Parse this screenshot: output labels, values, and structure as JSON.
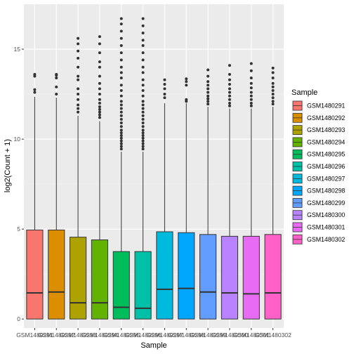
{
  "chart_data": {
    "type": "boxplot",
    "xlabel": "Sample",
    "ylabel": "log2(Count + 1)",
    "ylim": [
      -0.5,
      17.5
    ],
    "yticks": [
      0,
      5,
      10,
      15
    ],
    "grid": true,
    "legend": {
      "title": "Sample",
      "placement": "right"
    },
    "series": [
      {
        "name": "GSM1480291",
        "color": "#F8766D",
        "q1": 0,
        "median": 1.45,
        "q3": 4.95,
        "whisker_low": 0,
        "whisker_high": 12.35,
        "outliers": [
          12.6,
          12.75,
          13.5,
          13.6
        ]
      },
      {
        "name": "GSM1480292",
        "color": "#DB8E00",
        "q1": 0,
        "median": 1.5,
        "q3": 4.95,
        "whisker_low": 0,
        "whisker_high": 12.3,
        "outliers": [
          12.5,
          12.9,
          13.4,
          13.55,
          13.6
        ]
      },
      {
        "name": "GSM1480293",
        "color": "#AEA200",
        "q1": 0,
        "median": 0.9,
        "q3": 4.55,
        "whisker_low": 0,
        "whisker_high": 11.3,
        "outliers": [
          11.5,
          11.7,
          11.9,
          12.2,
          12.5,
          12.8,
          13.3,
          13.5,
          14.0,
          14.5,
          14.9,
          15.3,
          15.6
        ]
      },
      {
        "name": "GSM1480294",
        "color": "#64B200",
        "q1": 0,
        "median": 0.9,
        "q3": 4.4,
        "whisker_low": 0,
        "whisker_high": 11.0,
        "outliers": [
          11.2,
          11.35,
          11.5,
          11.65,
          11.8,
          12.0,
          12.2,
          12.5,
          12.8,
          13.1,
          13.5,
          14.0,
          14.3,
          14.8,
          15.3,
          15.7
        ]
      },
      {
        "name": "GSM1480295",
        "color": "#00BD5C",
        "q1": 0,
        "median": 0.65,
        "q3": 3.75,
        "whisker_low": 0,
        "whisker_high": 9.3,
        "outliers": [
          9.45,
          9.6,
          9.75,
          9.9,
          10.05,
          10.2,
          10.35,
          10.5,
          10.7,
          10.9,
          11.1,
          11.3,
          11.5,
          11.7,
          11.9,
          12.1,
          12.4,
          12.7,
          13.0,
          13.4,
          13.7,
          14.0,
          14.4,
          14.8,
          15.2,
          15.6,
          16.0,
          16.4,
          16.7
        ]
      },
      {
        "name": "GSM1480296",
        "color": "#00C1A7",
        "q1": 0,
        "median": 0.6,
        "q3": 3.75,
        "whisker_low": 0,
        "whisker_high": 9.3,
        "outliers": [
          9.45,
          9.6,
          9.75,
          9.9,
          10.05,
          10.2,
          10.35,
          10.5,
          10.7,
          10.9,
          11.1,
          11.3,
          11.5,
          11.7,
          11.9,
          12.1,
          12.4,
          12.7,
          13.0,
          13.3,
          13.7,
          14.0,
          14.4,
          14.8,
          15.2,
          15.5,
          15.9,
          16.3,
          16.7
        ]
      },
      {
        "name": "GSM1480297",
        "color": "#00BADE",
        "q1": 0,
        "median": 1.65,
        "q3": 4.85,
        "whisker_low": 0,
        "whisker_high": 12.0,
        "outliers": [
          12.3,
          12.5,
          12.8,
          13.05,
          13.3
        ]
      },
      {
        "name": "GSM1480298",
        "color": "#00A6FF",
        "q1": 0,
        "median": 1.7,
        "q3": 4.8,
        "whisker_low": 0,
        "whisker_high": 12.0,
        "outliers": [
          12.1,
          12.2,
          13.0,
          13.2,
          13.35
        ]
      },
      {
        "name": "GSM1480299",
        "color": "#619CFF",
        "q1": 0,
        "median": 1.5,
        "q3": 4.7,
        "whisker_low": 0,
        "whisker_high": 11.8,
        "outliers": [
          11.95,
          12.1,
          12.25,
          12.4,
          12.6,
          12.8,
          13.0,
          13.2,
          13.5,
          13.85
        ]
      },
      {
        "name": "GSM1480300",
        "color": "#B983FF",
        "q1": 0,
        "median": 1.45,
        "q3": 4.6,
        "whisker_low": 0,
        "whisker_high": 11.7,
        "outliers": [
          11.85,
          12.0,
          12.2,
          12.4,
          12.6,
          12.8,
          13.05,
          13.3,
          13.6,
          14.1
        ]
      },
      {
        "name": "GSM1480301",
        "color": "#E76BF3",
        "q1": 0,
        "median": 1.4,
        "q3": 4.6,
        "whisker_low": 0,
        "whisker_high": 11.7,
        "outliers": [
          11.85,
          12.0,
          12.2,
          12.4,
          12.6,
          12.85,
          13.1,
          13.4,
          13.8,
          14.2
        ]
      },
      {
        "name": "GSM1480302",
        "color": "#FF61C9",
        "q1": 0,
        "median": 1.45,
        "q3": 4.7,
        "whisker_low": 0,
        "whisker_high": 11.8,
        "outliers": [
          11.95,
          12.1,
          12.3,
          12.5,
          12.7,
          12.9,
          13.1,
          13.4,
          13.7,
          13.95
        ]
      }
    ]
  }
}
